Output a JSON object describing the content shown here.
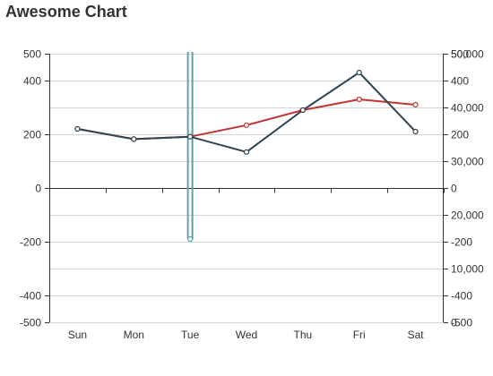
{
  "chart_data": {
    "title": "Awesome Chart",
    "type": "line",
    "categories": [
      "Sun",
      "Mon",
      "Tue",
      "Wed",
      "Thu",
      "Fri",
      "Sat"
    ],
    "series": [
      {
        "axis": "left",
        "color": "#c23531",
        "values": [
          220,
          182,
          191,
          234,
          290,
          330,
          310
        ]
      },
      {
        "axis": "left",
        "color": "#2f4554",
        "values": [
          220,
          182,
          191,
          134,
          290,
          430,
          210
        ]
      },
      {
        "axis": "left",
        "color": "#61a0a8",
        "points": [
          {
            "category": "Tue",
            "value": -190
          }
        ],
        "note_values_offscale": "vertical lines extend above plot top at Tue"
      }
    ],
    "y_left": {
      "ticks": [
        500,
        400,
        200,
        0,
        -200,
        -400,
        -500
      ],
      "tick_labels": [
        "500",
        "400",
        "200",
        "0",
        "-200",
        "-400",
        "-500"
      ],
      "range": [
        -500,
        500
      ]
    },
    "y_right_a": {
      "ticks": [
        500,
        400,
        200,
        0,
        -200,
        -400,
        -500
      ],
      "tick_labels": [
        "500",
        "400",
        "200",
        "0",
        "-200",
        "-400",
        "-500"
      ],
      "range": [
        -500,
        500
      ]
    },
    "y_right_b": {
      "tick_labels": [
        "50,000",
        "40,000",
        "30,000",
        "20,000",
        "10,000",
        "0"
      ],
      "ticks": [
        50000,
        40000,
        30000,
        20000,
        10000,
        0
      ],
      "range": [
        0,
        50000
      ]
    },
    "grid": true,
    "legend": "none"
  }
}
